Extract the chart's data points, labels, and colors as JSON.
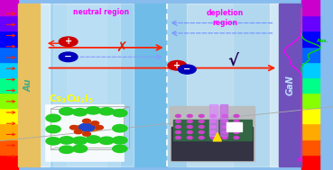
{
  "fig_width": 3.69,
  "fig_height": 1.89,
  "dpi": 100,
  "au_color": "#e8c060",
  "gan_color": "#7050bb",
  "bg_left_color": "#80c8f0",
  "bg_right_color": "#a8d8f8",
  "bg_center_glow": "#d0eeff",
  "white_glow": "#ffffff",
  "neutral_text": "neutral region",
  "depletion_top": "depletion",
  "depletion_bot": "region",
  "formula_color": "#ffff00",
  "gan_label": "GaN",
  "au_label": "Au",
  "abs_label": "Abs.",
  "r_label": "R",
  "cross_symbol": "✗",
  "check_symbol": "√",
  "text_magenta": "#ff00ff",
  "arrow_red": "#ff2200",
  "arrow_blue_dash": "#8888ff",
  "plus_color": "#cc0000",
  "minus_color": "#0000bb",
  "abs_curve_color": "#00dd00",
  "r_curve_color": "#ff00ff",
  "abs_label_color": "#00cc00",
  "r_label_color": "#ff00ff",
  "crystal_bg": "#ffffff",
  "device_bg": "#cccccc",
  "spectrum_colors": [
    "#cc00cc",
    "#6600ff",
    "#0000ff",
    "#0066ff",
    "#00ccff",
    "#00ff88",
    "#88ff00",
    "#ffff00",
    "#ffaa00",
    "#ff5500",
    "#ff0000"
  ]
}
